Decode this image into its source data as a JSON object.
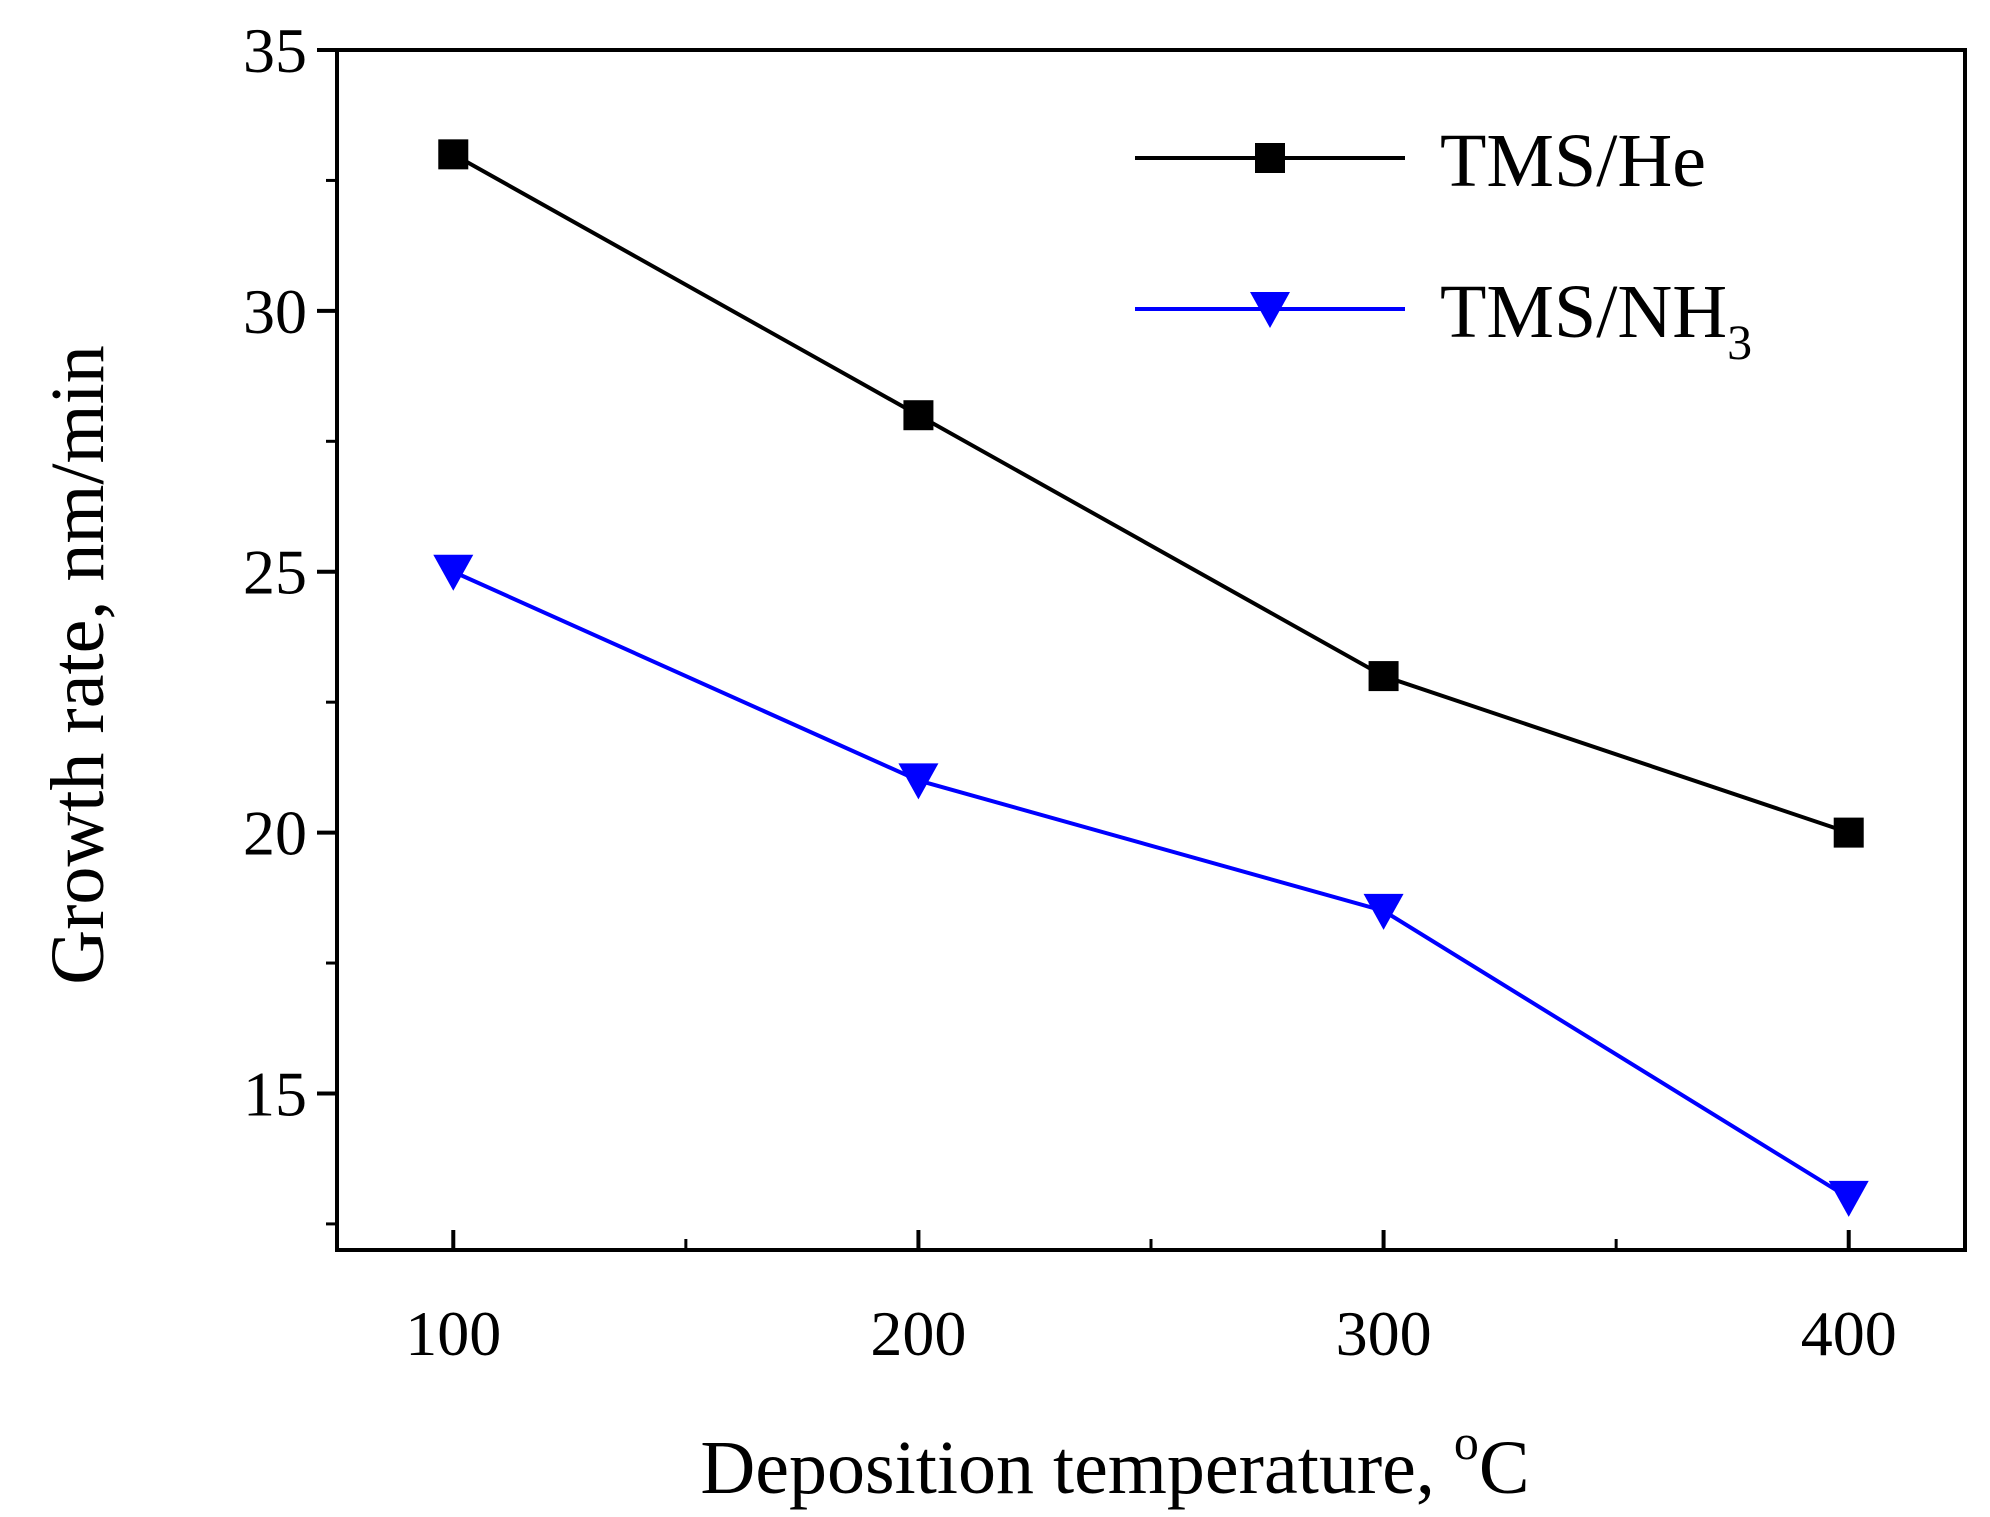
{
  "chart_data": {
    "type": "line",
    "title": "",
    "xlabel": "Deposition temperature, ",
    "xlabel_superscript": "o",
    "xlabel_suffix": "C",
    "ylabel": "Growth rate, nm/min",
    "x": [
      100,
      200,
      300,
      400
    ],
    "xlim": [
      75,
      425
    ],
    "ylim": [
      12.0,
      35.0
    ],
    "x_ticks": [
      100,
      200,
      300,
      400
    ],
    "x_minor_ticks": [
      150,
      250,
      350
    ],
    "y_ticks": [
      15,
      20,
      25,
      30,
      35
    ],
    "y_minor_ticks": [
      12.5,
      17.5,
      22.5,
      27.5,
      32.5
    ],
    "grid": false,
    "legend_position": "top-right",
    "series": [
      {
        "name": "TMS/He",
        "label_main": "TMS/He",
        "label_sub": "",
        "color": "#000000",
        "marker": "square",
        "values": [
          33.0,
          28.0,
          23.0,
          20.0
        ]
      },
      {
        "name": "TMS/NH3",
        "label_main": "TMS/NH",
        "label_sub": "3",
        "color": "#0000ff",
        "marker": "triangle-down",
        "values": [
          25.0,
          21.0,
          18.5,
          13.0
        ]
      }
    ]
  }
}
